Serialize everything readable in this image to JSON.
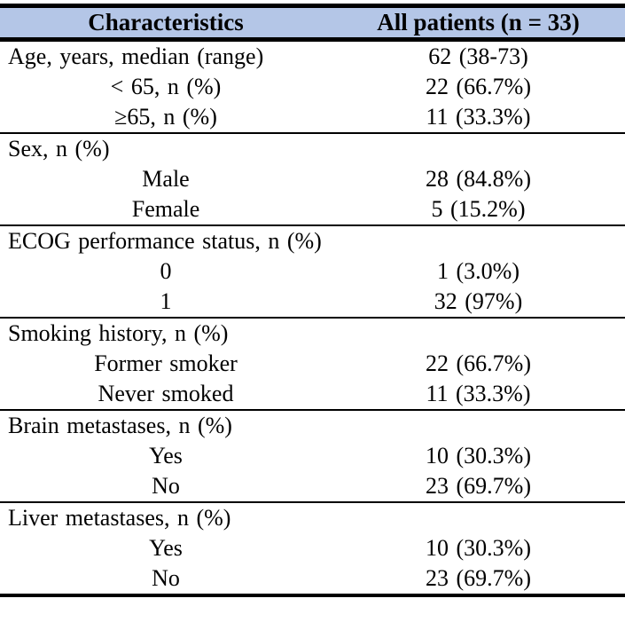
{
  "colors": {
    "header_bg": "#b4c6e7",
    "border": "#000000",
    "text": "#000000"
  },
  "table": {
    "columns": [
      "Characteristics",
      "All patients (n = 33)"
    ],
    "sections": [
      {
        "rows": [
          {
            "label": "Age, years, median (range)",
            "value": "62 (38-73)"
          },
          {
            "label": "< 65, n (%)",
            "value": "22 (66.7%)"
          },
          {
            "label": "≥65, n (%)",
            "value": "11 (33.3%)"
          }
        ]
      },
      {
        "rows": [
          {
            "label": "Sex, n (%)",
            "value": ""
          },
          {
            "label": "Male",
            "value": "28 (84.8%)"
          },
          {
            "label": "Female",
            "value": "5 (15.2%)"
          }
        ]
      },
      {
        "rows": [
          {
            "label": "ECOG performance status, n (%)",
            "value": ""
          },
          {
            "label": "0",
            "value": "1 (3.0%)"
          },
          {
            "label": "1",
            "value": "32 (97%)"
          }
        ]
      },
      {
        "rows": [
          {
            "label": "Smoking history, n (%)",
            "value": ""
          },
          {
            "label": "Former smoker",
            "value": "22 (66.7%)"
          },
          {
            "label": "Never smoked",
            "value": "11 (33.3%)"
          }
        ]
      },
      {
        "rows": [
          {
            "label": "Brain metastases, n (%)",
            "value": ""
          },
          {
            "label": "Yes",
            "value": "10 (30.3%)"
          },
          {
            "label": "No",
            "value": "23 (69.7%)"
          }
        ]
      },
      {
        "rows": [
          {
            "label": "Liver metastases, n (%)",
            "value": ""
          },
          {
            "label": "Yes",
            "value": "10 (30.3%)"
          },
          {
            "label": "No",
            "value": "23 (69.7%)"
          }
        ]
      }
    ]
  }
}
